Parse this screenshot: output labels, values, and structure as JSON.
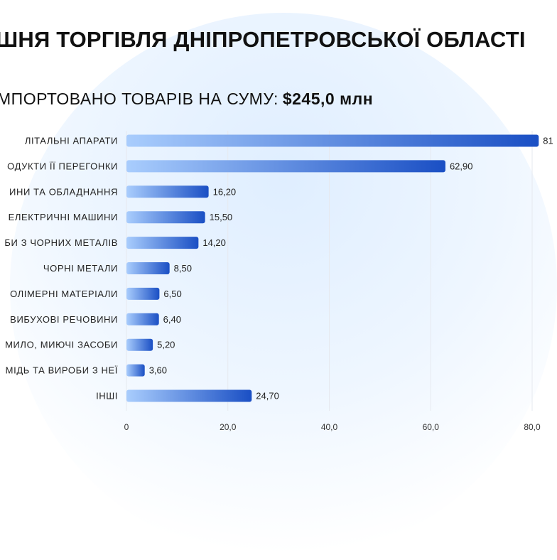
{
  "chart_data": {
    "type": "bar",
    "orientation": "horizontal",
    "title": "ШНЯ ТОРГІВЛЯ ДНІПРОПЕТРОВСЬКОЇ ОБЛАСТІ",
    "subtitle_prefix": "МПОРТОВАНО ТОВАРІВ НА СУМУ:",
    "subtitle_amount": "$245,0 млн",
    "categories": [
      "ЛІТАЛЬНІ АПАРАТИ",
      "ОДУКТИ ЇЇ ПЕРЕГОНКИ",
      "ИНИ ТА ОБЛАДНАННЯ",
      "ЕЛЕКТРИЧНІ МАШИНИ",
      "БИ З ЧОРНИХ МЕТАЛІВ",
      "ЧОРНІ МЕТАЛИ",
      "ОЛІМЕРНІ МАТЕРІАЛИ",
      "ВИБУХОВІ РЕЧОВИНИ",
      "МИЛО, МИЮЧІ ЗАСОБИ",
      "МІДЬ ТА ВИРОБИ З НЕЇ",
      "ІНШІ"
    ],
    "values": [
      81.3,
      62.9,
      16.2,
      15.5,
      14.2,
      8.5,
      6.5,
      6.4,
      5.2,
      3.6,
      24.7
    ],
    "value_labels": [
      "81",
      "62,90",
      "16,20",
      "15,50",
      "14,20",
      "8,50",
      "6,50",
      "6,40",
      "5,20",
      "3,60",
      "24,70"
    ],
    "x_ticks": [
      0,
      20,
      40,
      60,
      80
    ],
    "x_tick_labels": [
      "0",
      "20,0",
      "40,0",
      "60,0",
      "80,0"
    ],
    "xlim": [
      0,
      80
    ],
    "grid": "vertical",
    "colors": {
      "bar_start": "#a9cdfd",
      "bar_end": "#1a4fc4",
      "grid": "#e6e9ef"
    }
  }
}
